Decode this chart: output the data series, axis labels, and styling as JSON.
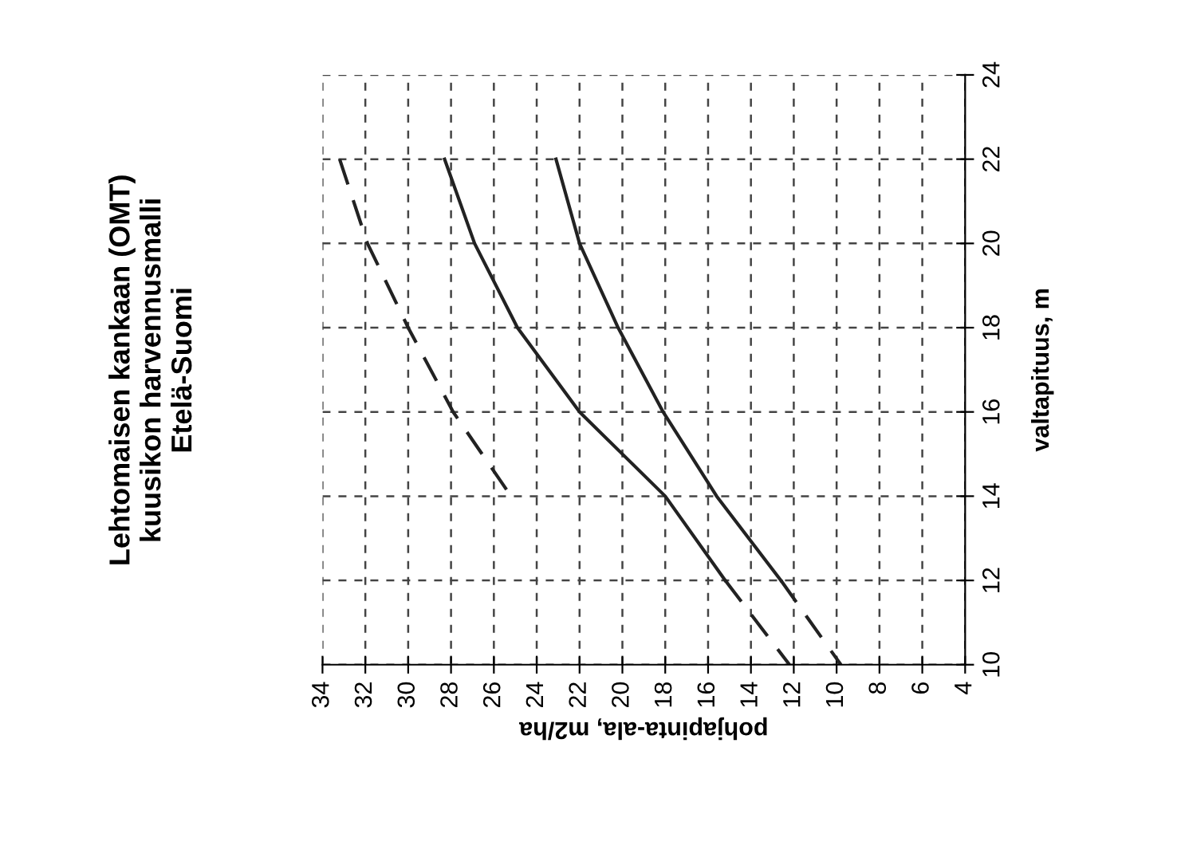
{
  "chart_data": {
    "type": "line",
    "title": "Lehtomaisen kankaan (OMT)\nkuusikon harvennusmalli\nEtelä-Suomi",
    "xlabel": "pohjapinta-ala, m2/ha",
    "ylabel": "valtapituus, m",
    "xlim": [
      34,
      4
    ],
    "xticks": [
      34,
      32,
      30,
      28,
      26,
      24,
      22,
      20,
      18,
      16,
      14,
      12,
      10,
      8,
      6,
      4
    ],
    "ylim": [
      10,
      24
    ],
    "yticks": [
      10,
      12,
      14,
      16,
      18,
      20,
      22,
      24
    ],
    "grid": true,
    "legend": false,
    "marker": "none",
    "series": [
      {
        "color": "#222222",
        "line_style": "dashed",
        "x": [
          33.2,
          31.9,
          30.0,
          27.9,
          25.2
        ],
        "values": [
          22,
          20,
          18,
          16,
          14
        ]
      },
      {
        "color": "#222222",
        "line_style": "solid",
        "x": [
          28.3,
          26.9,
          24.9,
          22.0,
          18.0,
          15.2
        ],
        "values": [
          22,
          20,
          18,
          16,
          14,
          12
        ]
      },
      {
        "color": "#222222",
        "line_style": "dashed",
        "x": [
          15.2,
          12.2
        ],
        "values": [
          12,
          10
        ]
      },
      {
        "color": "#222222",
        "line_style": "solid",
        "x": [
          23.1,
          22.0,
          20.2,
          18.1,
          15.6,
          12.6
        ],
        "values": [
          22,
          20,
          18,
          16,
          14,
          12
        ]
      },
      {
        "color": "#222222",
        "line_style": "dashed",
        "x": [
          12.6,
          9.8
        ],
        "values": [
          12,
          10
        ]
      }
    ]
  }
}
